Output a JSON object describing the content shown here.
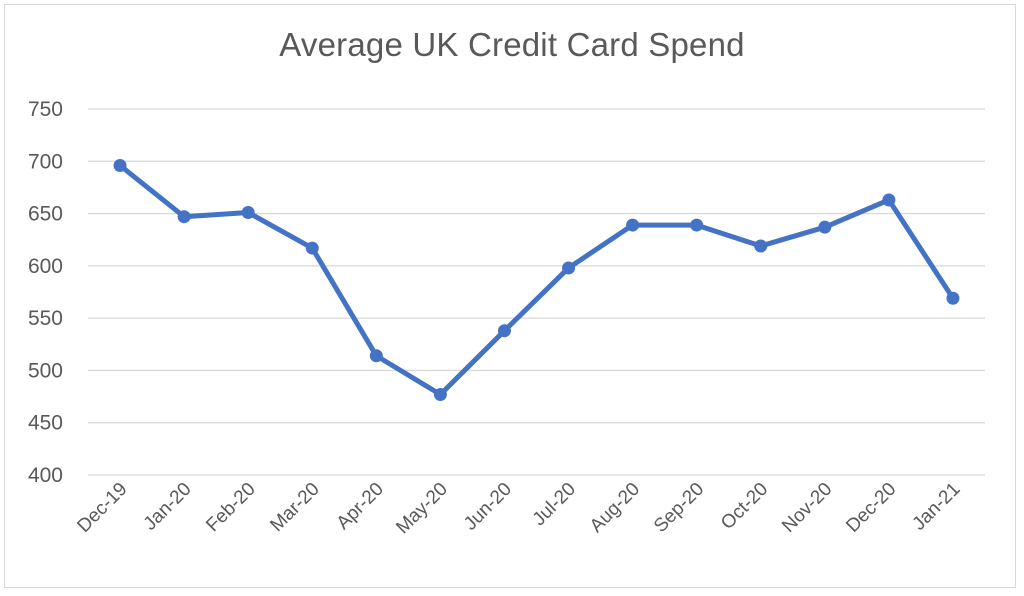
{
  "chart_data": {
    "type": "line",
    "title": "Average UK Credit Card Spend",
    "xlabel": "",
    "ylabel": "",
    "ylim": [
      400,
      750
    ],
    "yticks": [
      400,
      450,
      500,
      550,
      600,
      650,
      700,
      750
    ],
    "grid": true,
    "legend": null,
    "categories": [
      "Dec-19",
      "Jan-20",
      "Feb-20",
      "Mar-20",
      "Apr-20",
      "May-20",
      "Jun-20",
      "Jul-20",
      "Aug-20",
      "Sep-20",
      "Oct-20",
      "Nov-20",
      "Dec-20",
      "Jan-21"
    ],
    "series": [
      {
        "name": "Average UK Credit Card Spend",
        "color": "#4472c4",
        "values": [
          696,
          647,
          651,
          617,
          514,
          477,
          538,
          598,
          639,
          639,
          619,
          637,
          663,
          569
        ]
      }
    ]
  },
  "colors": {
    "line": "#4472c4",
    "grid": "#d9d9d9",
    "text": "#595959",
    "border": "#d9d9d9"
  }
}
